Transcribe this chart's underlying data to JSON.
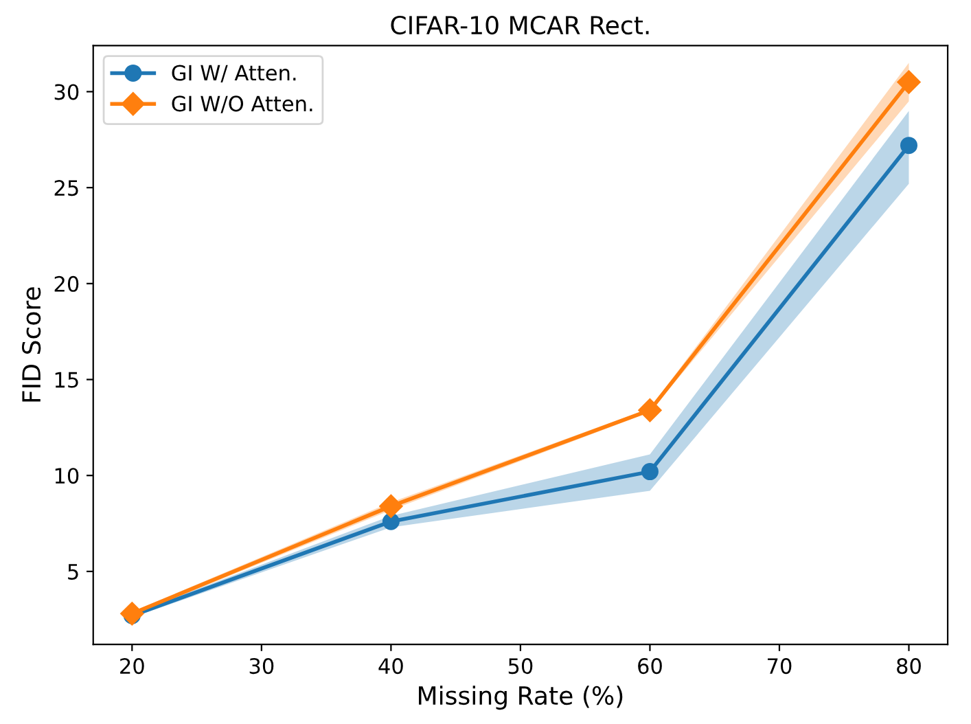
{
  "chart_data": {
    "type": "line",
    "title": "CIFAR-10 MCAR Rect.",
    "xlabel": "Missing Rate (%)",
    "ylabel": "FID Score",
    "x": [
      20,
      40,
      60,
      80
    ],
    "series": [
      {
        "name": "GI W/ Atten.",
        "color": "#1f77b4",
        "marker": "circle",
        "values": [
          2.7,
          7.6,
          10.2,
          27.2
        ],
        "lower": [
          2.6,
          7.3,
          9.2,
          25.2
        ],
        "upper": [
          2.8,
          7.9,
          11.1,
          29.0
        ]
      },
      {
        "name": "GI W/O Atten.",
        "color": "#ff7f0e",
        "marker": "diamond",
        "values": [
          2.8,
          8.4,
          13.4,
          30.5
        ],
        "lower": [
          2.7,
          8.2,
          13.3,
          29.5
        ],
        "upper": [
          2.9,
          8.6,
          13.5,
          31.5
        ]
      }
    ],
    "xlim": [
      17,
      83
    ],
    "ylim": [
      1.2,
      32.4
    ],
    "xticks": [
      20,
      30,
      40,
      50,
      60,
      70,
      80
    ],
    "yticks": [
      5,
      10,
      15,
      20,
      25,
      30
    ],
    "grid": false,
    "legend": "top left"
  }
}
